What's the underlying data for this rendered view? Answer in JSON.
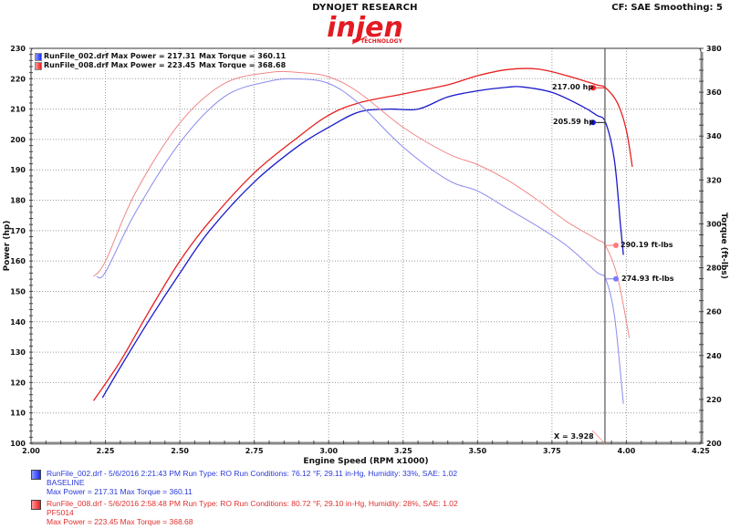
{
  "header": {
    "brand_line": "DYNOJET RESEARCH",
    "logo_text": "injen",
    "logo_sub": "TECHNOLOGY",
    "settings": "CF: SAE  Smoothing: 5"
  },
  "legend_top": [
    {
      "file": "RunFile_002.drf Max Power = 217.31",
      "torque": "Max Torque = 360.11",
      "color": "#1a2aff"
    },
    {
      "file": "RunFile_008.drf Max Power = 223.45",
      "torque": "Max Torque = 368.68",
      "color": "#e82020"
    }
  ],
  "cursor": {
    "x_label": "X = 3.928",
    "x_value": 3.928,
    "readouts": [
      {
        "label": "217.00 hp",
        "series": "RunFile_008 power",
        "color": "#ff1a1a"
      },
      {
        "label": "205.59 hp",
        "series": "RunFile_002 power",
        "color": "#1a1aff"
      },
      {
        "label": "290.19 ft-lbs",
        "series": "RunFile_008 torque",
        "color": "#ff7a7a"
      },
      {
        "label": "274.93 ft-lbs",
        "series": "RunFile_002 torque",
        "color": "#7a7aff"
      }
    ]
  },
  "footer": {
    "runs": [
      {
        "line1": "RunFile_002.drf - 5/6/2016 2:21:43 PM  Run Type: RO  Run Conditions: 76.12 °F, 29.11 in-Hg,  Humidity:  33%, SAE: 1.02",
        "line2": "BASELINE",
        "line3": "Max Power = 217.31  Max Torque = 360.11",
        "color": "#2a3ad8"
      },
      {
        "line1": "RunFile_008.drf - 5/6/2016 2:58:48 PM  Run Type: RO  Run Conditions: 80.72 °F, 29.10 in-Hg,  Humidity:  28%, SAE: 1.02",
        "line2": "PF5014",
        "line3": "Max Power = 223.45  Max Torque = 368.68",
        "color": "#e03030"
      }
    ]
  },
  "chart_data": {
    "type": "line",
    "title": "DYNOJET RESEARCH",
    "xlabel": "Engine Speed (RPM x1000)",
    "ylabel": "Power (hp)",
    "y2label": "Torque (ft-lbs)",
    "xlim": [
      2.0,
      4.25
    ],
    "ylim": [
      100,
      230
    ],
    "y2lim": [
      200,
      380
    ],
    "x_ticks": [
      "2.00",
      "2.25",
      "2.50",
      "2.75",
      "3.00",
      "3.25",
      "3.50",
      "3.75",
      "4.00",
      "4.25"
    ],
    "y_ticks": [
      "100",
      "110",
      "120",
      "130",
      "140",
      "150",
      "160",
      "170",
      "180",
      "190",
      "200",
      "210",
      "220",
      "230"
    ],
    "y2_ticks": [
      "200",
      "220",
      "240",
      "260",
      "280",
      "300",
      "320",
      "340",
      "360",
      "380"
    ],
    "grid": true,
    "series": [
      {
        "name": "RunFile_002 Power (hp)",
        "axis": "left",
        "color": "#1a1acc",
        "weight": "bold",
        "x": [
          2.24,
          2.3,
          2.4,
          2.5,
          2.6,
          2.75,
          2.9,
          3.0,
          3.1,
          3.2,
          3.3,
          3.4,
          3.5,
          3.6,
          3.65,
          3.75,
          3.85,
          3.9,
          3.93,
          3.96,
          3.98,
          3.99
        ],
        "values": [
          115,
          125,
          141,
          156,
          170,
          186,
          198,
          204,
          209,
          210,
          210,
          214,
          216,
          217.2,
          217.3,
          215.5,
          211,
          208,
          205.6,
          193,
          172,
          162
        ]
      },
      {
        "name": "RunFile_008 Power (hp)",
        "axis": "left",
        "color": "#e82020",
        "weight": "bold",
        "x": [
          2.21,
          2.3,
          2.4,
          2.5,
          2.6,
          2.75,
          2.9,
          3.0,
          3.1,
          3.25,
          3.4,
          3.5,
          3.6,
          3.7,
          3.8,
          3.9,
          3.93,
          3.97,
          4.0,
          4.02
        ],
        "values": [
          114,
          127,
          144,
          160,
          173,
          189,
          201,
          208,
          212,
          215,
          218,
          221,
          223,
          223.2,
          221,
          218,
          217,
          212,
          203,
          191
        ]
      },
      {
        "name": "RunFile_002 Torque (ft-lbs)",
        "axis": "right",
        "color": "#8a8aee",
        "weight": "light",
        "x": [
          2.22,
          2.25,
          2.35,
          2.5,
          2.65,
          2.8,
          2.9,
          3.0,
          3.1,
          3.25,
          3.4,
          3.5,
          3.6,
          3.7,
          3.8,
          3.9,
          3.93,
          3.96,
          3.99
        ],
        "values": [
          276,
          278,
          305,
          337,
          358,
          365,
          366,
          364,
          355,
          335,
          320,
          315,
          307,
          299,
          290,
          278,
          275,
          258,
          218
        ]
      },
      {
        "name": "RunFile_008 Torque (ft-lbs)",
        "axis": "right",
        "color": "#f08888",
        "weight": "light",
        "x": [
          2.21,
          2.25,
          2.35,
          2.5,
          2.65,
          2.8,
          2.9,
          3.0,
          3.1,
          3.25,
          3.4,
          3.5,
          3.6,
          3.7,
          3.8,
          3.9,
          3.93,
          3.97,
          4.01
        ],
        "values": [
          276,
          283,
          314,
          346,
          364,
          369,
          369,
          367,
          360,
          344,
          332,
          327,
          320,
          311,
          301,
          293,
          290,
          276,
          248
        ]
      }
    ],
    "cursor_x": 3.928,
    "annotations": [
      "217.00 hp",
      "205.59 hp",
      "290.19 ft-lbs",
      "274.93 ft-lbs",
      "X = 3.928"
    ]
  }
}
